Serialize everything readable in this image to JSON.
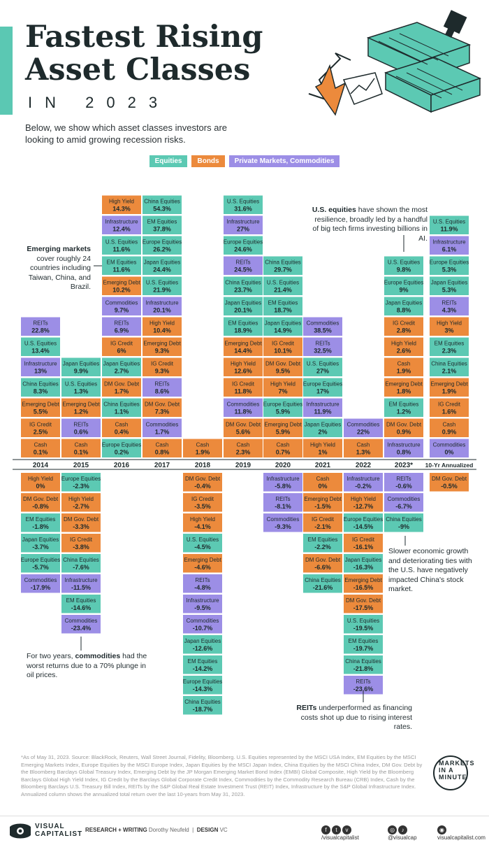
{
  "header": {
    "title_line1": "Fastest Rising",
    "title_line2": "Asset Classes",
    "year_line": "IN 2023",
    "intro": "Below, we show which asset classes investors are looking to amid growing recession risks."
  },
  "legend": [
    {
      "label": "Equities",
      "color": "#5cc9b3"
    },
    {
      "label": "Bonds",
      "color": "#ec8a3c"
    },
    {
      "label": "Private Markets, Commodities",
      "color": "#9c8ee6"
    }
  ],
  "colors": {
    "Equities": "#5cc9b3",
    "Bonds": "#ec8a3c",
    "Private": "#9c8ee6",
    "accent": "#5bc8b3",
    "text": "#1e2a2c"
  },
  "annotations": {
    "em_bold": "Emerging markets",
    "em_rest": "cover roughly 24 countries including Taiwan, China, and Brazil.",
    "us_bold": "U.S. equities",
    "us_rest": "have shown the most resilience, broadly led by a handful of big tech firms investing billions in AI.",
    "china_text": "Slower economic growth and deteriorating ties with the U.S. have negatively impacted China's stock market.",
    "comm_pre": "For two years,",
    "comm_bold": "commodities",
    "comm_rest": "had the worst returns due to a 70% plunge in oil prices.",
    "reits_bold": "REITs",
    "reits_rest": "underperformed as financing costs shot up due to rising interest rates."
  },
  "source": "*As of May 31, 2023. Source: BlackRock, Reuters, Wall Street Journal, Fidelity, Bloomberg. U.S. Equities represented by the MSCI USA Index, EM Equities by the MSCI Emerging Markets Index, Europe Equities by the MSCI Europe Index, Japan Equities by the MSCI Japan Index, China Equities by the MSCI China Index, DM Gov. Debt by the Bloomberg Barclays Global Treasury Index, Emerging Debt by the JP Morgan Emerging Market Bond Index (EMBI) Global Composite, High Yield by the Bloomberg Barclays Global High Yield Index, IG Credit by the Barclays Global Corporate Credit Index, Commodities by the Commodity Research Bureau (CRB) Index, Cash by the Bloomberg Barclays U.S. Treasury Bill Index, REITs by the S&P Global Real Estate Investment Trust (REIT) Index, Infrastructure by the S&P Global Infrastructure Index. Annualized column shows the annualized total return over the last 10-years from May 31, 2023.",
  "brand": {
    "mim_line1": "MARKETS",
    "mim_line2": "IN A",
    "mim_line3": "MINUTE",
    "vc_line1": "VISUAL",
    "vc_line2": "CAPITALIST",
    "research_label": "RESEARCH + WRITING",
    "research_name": "Dorothy Neufeld",
    "design_label": "DESIGN",
    "design_name": "VC",
    "social1": "/visualcapitalist",
    "social2": "@visualcap",
    "social3": "visualcapitalist.com"
  },
  "chart_data": {
    "type": "table",
    "categories": [
      "2014",
      "2015",
      "2016",
      "2017",
      "2018",
      "2019",
      "2020",
      "2021",
      "2022",
      "2023*",
      "10-Yr Annualized"
    ],
    "columns": [
      {
        "year": "2014",
        "positive": [
          [
            "REITs",
            22.8,
            "Private"
          ],
          [
            "U.S. Equities",
            13.4,
            "Equities"
          ],
          [
            "Infrastructure",
            13,
            "Private"
          ],
          [
            "China Equities",
            8.3,
            "Equities"
          ],
          [
            "Emerging Debt",
            5.5,
            "Bonds"
          ],
          [
            "IG Credit",
            2.5,
            "Bonds"
          ],
          [
            "Cash",
            0.1,
            "Bonds"
          ]
        ],
        "negative": [
          [
            "High Yield",
            0,
            "Bonds"
          ],
          [
            "DM Gov. Debt",
            -0.8,
            "Bonds"
          ],
          [
            "EM Equities",
            -1.8,
            "Equities"
          ],
          [
            "Japan Equities",
            -3.7,
            "Equities"
          ],
          [
            "Europe Equities",
            -5.7,
            "Equities"
          ],
          [
            "Commodities",
            -17.9,
            "Private"
          ]
        ]
      },
      {
        "year": "2015",
        "positive": [
          [
            "Japan Equities",
            9.9,
            "Equities"
          ],
          [
            "U.S. Equities",
            1.3,
            "Equities"
          ],
          [
            "Emerging Debt",
            1.2,
            "Bonds"
          ],
          [
            "REITs",
            0.6,
            "Private"
          ],
          [
            "Cash",
            0.1,
            "Bonds"
          ]
        ],
        "negative": [
          [
            "Europe Equities",
            -2.3,
            "Equities"
          ],
          [
            "High Yield",
            -2.7,
            "Bonds"
          ],
          [
            "DM Gov. Debt",
            -3.3,
            "Bonds"
          ],
          [
            "IG Credit",
            -3.8,
            "Bonds"
          ],
          [
            "China Equities",
            -7.6,
            "Equities"
          ],
          [
            "Infrastructure",
            -11.5,
            "Private"
          ],
          [
            "EM Equities",
            -14.6,
            "Equities"
          ],
          [
            "Commodities",
            -23.4,
            "Private"
          ]
        ]
      },
      {
        "year": "2016",
        "positive": [
          [
            "High Yield",
            14.3,
            "Bonds"
          ],
          [
            "Infrastructure",
            12.4,
            "Private"
          ],
          [
            "U.S. Equities",
            11.6,
            "Equities"
          ],
          [
            "EM Equities",
            11.6,
            "Equities"
          ],
          [
            "Emerging Debt",
            10.2,
            "Bonds"
          ],
          [
            "Commodities",
            9.7,
            "Private"
          ],
          [
            "REITs",
            6.9,
            "Private"
          ],
          [
            "IG Credit",
            6,
            "Bonds"
          ],
          [
            "Japan Equities",
            2.7,
            "Equities"
          ],
          [
            "DM Gov. Debt",
            1.7,
            "Bonds"
          ],
          [
            "China Equities",
            1.1,
            "Equities"
          ],
          [
            "Cash",
            0.4,
            "Bonds"
          ],
          [
            "Europe Equities",
            0.2,
            "Equities"
          ]
        ],
        "negative": []
      },
      {
        "year": "2017",
        "positive": [
          [
            "China Equities",
            54.3,
            "Equities"
          ],
          [
            "EM Equities",
            37.8,
            "Equities"
          ],
          [
            "Europe Equities",
            26.2,
            "Equities"
          ],
          [
            "Japan Equities",
            24.4,
            "Equities"
          ],
          [
            "U.S. Equities",
            21.9,
            "Equities"
          ],
          [
            "Infrastructure",
            20.1,
            "Private"
          ],
          [
            "High Yield",
            10.4,
            "Bonds"
          ],
          [
            "Emerging Debt",
            9.3,
            "Bonds"
          ],
          [
            "IG Credit",
            9.3,
            "Bonds"
          ],
          [
            "REITs",
            8.6,
            "Private"
          ],
          [
            "DM Gov. Debt",
            7.3,
            "Bonds"
          ],
          [
            "Commodities",
            1.7,
            "Private"
          ],
          [
            "Cash",
            0.8,
            "Bonds"
          ]
        ],
        "negative": []
      },
      {
        "year": "2018",
        "positive": [
          [
            "Cash",
            1.9,
            "Bonds"
          ]
        ],
        "negative": [
          [
            "DM Gov. Debt",
            -0.4,
            "Bonds"
          ],
          [
            "IG Credit",
            -3.5,
            "Bonds"
          ],
          [
            "High Yield",
            -4.1,
            "Bonds"
          ],
          [
            "U.S. Equities",
            -4.5,
            "Equities"
          ],
          [
            "Emerging Debt",
            -4.6,
            "Bonds"
          ],
          [
            "REITs",
            -4.8,
            "Private"
          ],
          [
            "Infrastructure",
            -9.5,
            "Private"
          ],
          [
            "Commodities",
            -10.7,
            "Private"
          ],
          [
            "Japan Equities",
            -12.6,
            "Equities"
          ],
          [
            "EM Equities",
            -14.2,
            "Equities"
          ],
          [
            "Europe Equities",
            -14.3,
            "Equities"
          ],
          [
            "China Equities",
            -18.7,
            "Equities"
          ]
        ]
      },
      {
        "year": "2019",
        "positive": [
          [
            "U.S. Equities",
            31.6,
            "Equities"
          ],
          [
            "Infrastructure",
            27,
            "Private"
          ],
          [
            "Europe Equities",
            24.6,
            "Equities"
          ],
          [
            "REITs",
            24.5,
            "Private"
          ],
          [
            "China Equities",
            23.7,
            "Equities"
          ],
          [
            "Japan Equities",
            20.1,
            "Equities"
          ],
          [
            "EM Equities",
            18.9,
            "Equities"
          ],
          [
            "Emerging Debt",
            14.4,
            "Bonds"
          ],
          [
            "High Yield",
            12.6,
            "Bonds"
          ],
          [
            "IG Credit",
            11.8,
            "Bonds"
          ],
          [
            "Commodities",
            11.8,
            "Private"
          ],
          [
            "DM Gov. Debt",
            5.6,
            "Bonds"
          ],
          [
            "Cash",
            2.3,
            "Bonds"
          ]
        ],
        "negative": []
      },
      {
        "year": "2020",
        "positive": [
          [
            "China Equities",
            29.7,
            "Equities"
          ],
          [
            "U.S. Equities",
            21.4,
            "Equities"
          ],
          [
            "EM Equities",
            18.7,
            "Equities"
          ],
          [
            "Japan Equities",
            14.9,
            "Equities"
          ],
          [
            "IG Credit",
            10.1,
            "Bonds"
          ],
          [
            "DM Gov. Debt",
            9.5,
            "Bonds"
          ],
          [
            "High Yield",
            7,
            "Bonds"
          ],
          [
            "Europe Equities",
            5.9,
            "Equities"
          ],
          [
            "Emerging Debt",
            5.9,
            "Bonds"
          ],
          [
            "Cash",
            0.7,
            "Bonds"
          ]
        ],
        "negative": [
          [
            "Infrastructure",
            -5.8,
            "Private"
          ],
          [
            "REITs",
            -8.1,
            "Private"
          ],
          [
            "Commodities",
            -9.3,
            "Private"
          ]
        ]
      },
      {
        "year": "2021",
        "positive": [
          [
            "Commodities",
            38.5,
            "Private"
          ],
          [
            "REITs",
            32.5,
            "Private"
          ],
          [
            "U.S. Equities",
            27,
            "Equities"
          ],
          [
            "Europe Equities",
            17,
            "Equities"
          ],
          [
            "Infrastructure",
            11.9,
            "Private"
          ],
          [
            "Japan Equities",
            2,
            "Equities"
          ],
          [
            "High Yield",
            1,
            "Bonds"
          ]
        ],
        "negative": [
          [
            "Cash",
            0,
            "Bonds"
          ],
          [
            "Emerging Debt",
            -1.5,
            "Bonds"
          ],
          [
            "IG Credit",
            -2.1,
            "Bonds"
          ],
          [
            "EM Equities",
            -2.2,
            "Equities"
          ],
          [
            "DM Gov. Debt",
            -6.6,
            "Bonds"
          ],
          [
            "China Equities",
            -21.6,
            "Equities"
          ]
        ]
      },
      {
        "year": "2022",
        "positive": [
          [
            "Commodities",
            22,
            "Private"
          ],
          [
            "Cash",
            1.3,
            "Bonds"
          ]
        ],
        "negative": [
          [
            "Infrastructure",
            -0.2,
            "Private"
          ],
          [
            "High Yield",
            -12.7,
            "Bonds"
          ],
          [
            "Europe Equities",
            -14.5,
            "Equities"
          ],
          [
            "IG Credit",
            -16.1,
            "Bonds"
          ],
          [
            "Japan Equities",
            -16.3,
            "Equities"
          ],
          [
            "Emerging Debt",
            -16.5,
            "Bonds"
          ],
          [
            "DM Gov. Debt",
            -17.5,
            "Bonds"
          ],
          [
            "U.S. Equities",
            -19.5,
            "Equities"
          ],
          [
            "EM Equities",
            -19.7,
            "Equities"
          ],
          [
            "China Equities",
            -21.8,
            "Equities"
          ],
          [
            "REITs",
            -23.6,
            "Private"
          ]
        ]
      },
      {
        "year": "2023*",
        "positive": [
          [
            "U.S. Equities",
            9.8,
            "Equities"
          ],
          [
            "Europe Equities",
            9,
            "Equities"
          ],
          [
            "Japan Equities",
            8.8,
            "Equities"
          ],
          [
            "IG Credit",
            2.8,
            "Bonds"
          ],
          [
            "High Yield",
            2.6,
            "Bonds"
          ],
          [
            "Cash",
            1.9,
            "Bonds"
          ],
          [
            "Emerging Debt",
            1.8,
            "Bonds"
          ],
          [
            "EM Equities",
            1.2,
            "Equities"
          ],
          [
            "DM Gov. Debt",
            0.9,
            "Bonds"
          ],
          [
            "Infrastructure",
            0.8,
            "Private"
          ]
        ],
        "negative": [
          [
            "REITs",
            -0.6,
            "Private"
          ],
          [
            "Commodities",
            -6.7,
            "Private"
          ],
          [
            "China Equities",
            -9,
            "Equities"
          ]
        ]
      },
      {
        "year": "10-Yr Annualized",
        "positive": [
          [
            "U.S. Equities",
            11.9,
            "Equities"
          ],
          [
            "Infrastructure",
            6.1,
            "Private"
          ],
          [
            "Europe Equities",
            5.3,
            "Equities"
          ],
          [
            "Japan Equities",
            5.3,
            "Equities"
          ],
          [
            "REITs",
            4.3,
            "Private"
          ],
          [
            "High Yield",
            3,
            "Bonds"
          ],
          [
            "EM Equities",
            2.3,
            "Equities"
          ],
          [
            "China Equities",
            2.1,
            "Equities"
          ],
          [
            "Emerging Debt",
            1.9,
            "Bonds"
          ],
          [
            "IG Credit",
            1.6,
            "Bonds"
          ],
          [
            "Cash",
            0.9,
            "Bonds"
          ],
          [
            "Commodities",
            0,
            "Private"
          ]
        ],
        "negative": [
          [
            "DM Gov. Debt",
            -0.5,
            "Bonds"
          ]
        ]
      }
    ]
  }
}
